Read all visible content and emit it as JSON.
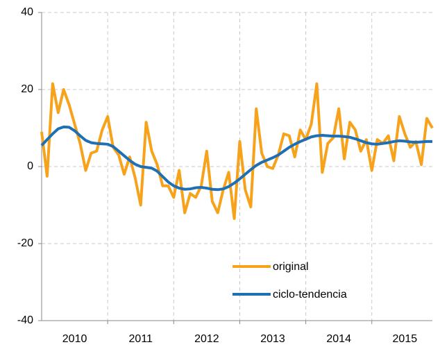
{
  "chart_data": {
    "type": "line",
    "x": [
      2010,
      2010.083,
      2010.167,
      2010.25,
      2010.333,
      2010.417,
      2010.5,
      2010.583,
      2010.667,
      2010.75,
      2010.833,
      2010.917,
      2011,
      2011.083,
      2011.167,
      2011.25,
      2011.333,
      2011.417,
      2011.5,
      2011.583,
      2011.667,
      2011.75,
      2011.833,
      2011.917,
      2012,
      2012.083,
      2012.167,
      2012.25,
      2012.333,
      2012.417,
      2012.5,
      2012.583,
      2012.667,
      2012.75,
      2012.833,
      2012.917,
      2013,
      2013.083,
      2013.167,
      2013.25,
      2013.333,
      2013.417,
      2013.5,
      2013.583,
      2013.667,
      2013.75,
      2013.833,
      2013.917,
      2014,
      2014.083,
      2014.167,
      2014.25,
      2014.333,
      2014.417,
      2014.5,
      2014.583,
      2014.667,
      2014.75,
      2014.833,
      2014.917,
      2015,
      2015.083,
      2015.167,
      2015.25,
      2015.333,
      2015.417,
      2015.5,
      2015.583,
      2015.667,
      2015.75,
      2015.833,
      2015.917
    ],
    "series": [
      {
        "name": "original",
        "color": "#f7a21b",
        "values": [
          9,
          -2.5,
          21.5,
          14,
          20,
          16,
          11,
          6,
          -1,
          3.5,
          4,
          9.5,
          13,
          5,
          3,
          -2,
          2.5,
          -3,
          -10,
          11.5,
          4,
          0.5,
          -5,
          -5,
          -8,
          -1,
          -12,
          -7,
          -8,
          -5,
          4,
          -9,
          -12,
          -6,
          -1.5,
          -13.5,
          6.5,
          -6,
          -10.5,
          15,
          3.5,
          0,
          -0.5,
          3,
          8.5,
          8,
          2.5,
          9.5,
          7,
          11,
          21.5,
          -1.5,
          6,
          7.5,
          15,
          2,
          11.5,
          9.5,
          4,
          7,
          -1,
          7,
          6,
          8,
          1.5,
          13,
          8.5,
          5,
          6.5,
          0.5,
          12.5,
          10
        ]
      },
      {
        "name": "ciclo-tendencia",
        "color": "#1f6fb5",
        "values": [
          5.5,
          7,
          8.5,
          9.8,
          10.3,
          10.2,
          9.3,
          8,
          6.8,
          6.2,
          6,
          5.9,
          5.8,
          5.2,
          4,
          2.8,
          1.6,
          0.6,
          0,
          -0.2,
          -0.4,
          -1.2,
          -2.6,
          -4,
          -5,
          -5.6,
          -5.9,
          -5.8,
          -5.5,
          -5.4,
          -5.6,
          -5.9,
          -6,
          -5.8,
          -5.2,
          -4.3,
          -3.2,
          -2,
          -0.8,
          0.3,
          1.1,
          1.7,
          2.3,
          3,
          4,
          5,
          5.8,
          6.5,
          7.1,
          7.7,
          8,
          8.1,
          8,
          7.9,
          7.9,
          7.8,
          7.6,
          7.2,
          6.7,
          6.2,
          5.9,
          5.8,
          6,
          6.2,
          6.5,
          6.7,
          6.6,
          6.4,
          6.3,
          6.4,
          6.5,
          6.5
        ]
      }
    ],
    "xlim": [
      2010,
      2015.917
    ],
    "xticks": [
      {
        "value": 2010.5,
        "label": "2010"
      },
      {
        "value": 2011.5,
        "label": "2011"
      },
      {
        "value": 2012.5,
        "label": "2012"
      },
      {
        "value": 2013.5,
        "label": "2013"
      },
      {
        "value": 2014.5,
        "label": "2014"
      },
      {
        "value": 2015.5,
        "label": "2015"
      }
    ],
    "xgrid": [
      2011,
      2012,
      2013,
      2014,
      2015
    ],
    "ylim": [
      -40,
      40
    ],
    "yticks": [
      -40,
      -20,
      0,
      20,
      40
    ],
    "grid": true,
    "legend": "lower right"
  }
}
